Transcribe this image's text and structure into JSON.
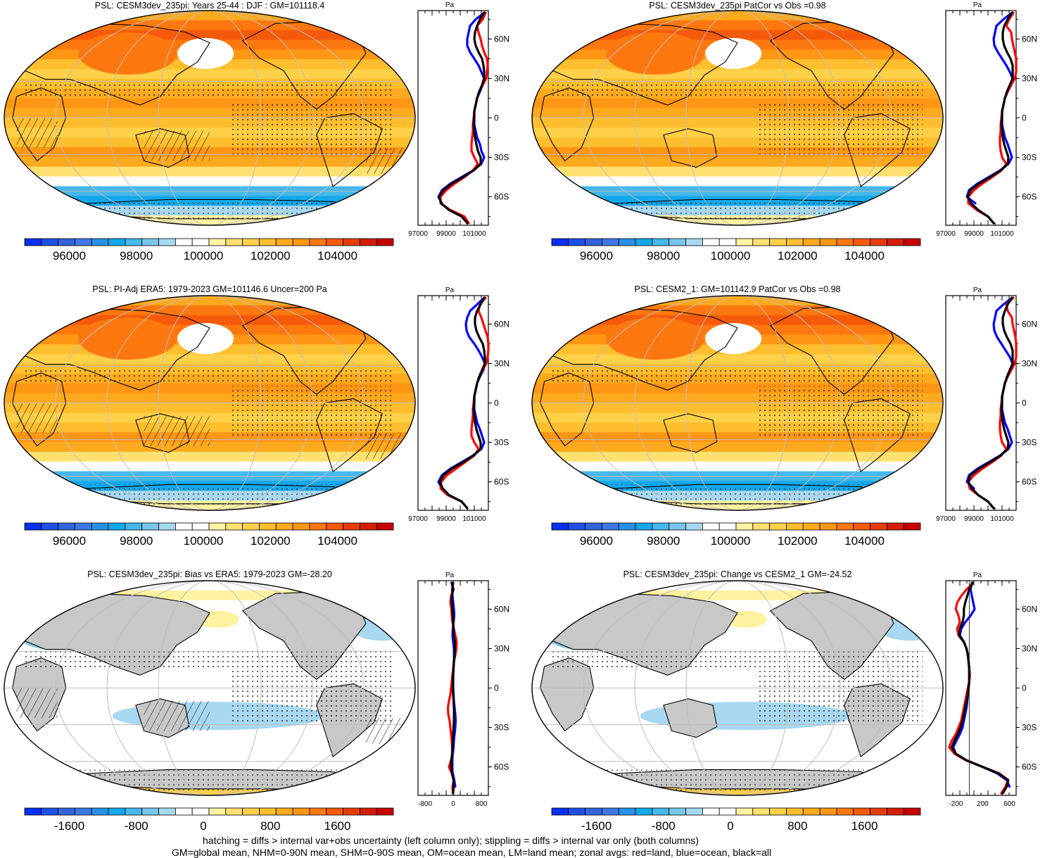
{
  "colors": {
    "palette_abs": [
      "#0a2ff0",
      "#1e4fe6",
      "#3264dc",
      "#3c78e6",
      "#2890e8",
      "#14a8ea",
      "#46b8ec",
      "#78c6ec",
      "#a8d8f0",
      "#ffffff",
      "#ffffff",
      "#fff2a0",
      "#ffe070",
      "#ffd048",
      "#ffbe2e",
      "#ffaa1e",
      "#ff9614",
      "#ff780f",
      "#f55a0a",
      "#e63c0a",
      "#d21e0a",
      "#c80000"
    ],
    "palette_diff": [
      "#0a2ff0",
      "#1e4fe6",
      "#3264dc",
      "#3c78e6",
      "#2890e8",
      "#14a8ea",
      "#46b8ec",
      "#78c6ec",
      "#a8d8f0",
      "#ffffff",
      "#ffffff",
      "#fff2a0",
      "#ffe070",
      "#ffd048",
      "#ffbe2e",
      "#ffaa1e",
      "#ff9614",
      "#ff780f",
      "#f55a0a",
      "#e63c0a",
      "#d21e0a",
      "#c80000"
    ],
    "land_mask": "#c8c8c8",
    "line_land": "#ff0000",
    "line_ocean": "#0000ff",
    "line_all": "#000000"
  },
  "panels": [
    {
      "title": "PSL: CESM3dev_235pi: Years 25-44 : DJF : GM=101118.4",
      "kind": "absolute",
      "colorbar_labels": [
        "96000",
        "98000",
        "100000",
        "102000",
        "104000"
      ],
      "zonal": {
        "unit": "Pa",
        "lat_labels": [
          "60N",
          "30N",
          "0",
          "30S",
          "60S"
        ],
        "x_labels": [
          "97000",
          "99000",
          "101000"
        ],
        "xlim": [
          97000,
          102000
        ],
        "lat": [
          80,
          75,
          70,
          65,
          60,
          55,
          50,
          45,
          40,
          35,
          30,
          25,
          20,
          15,
          10,
          5,
          0,
          -5,
          -10,
          -15,
          -20,
          -25,
          -30,
          -35,
          -40,
          -45,
          -50,
          -55,
          -60,
          -65,
          -70,
          -75,
          -80
        ],
        "land": [
          101800,
          101600,
          101200,
          101300,
          101450,
          101550,
          101700,
          101900,
          101950,
          101900,
          101850,
          101600,
          101350,
          101200,
          101100,
          101000,
          100950,
          100900,
          100900,
          100850,
          100800,
          100800,
          101000,
          101250,
          100900,
          100300,
          99600,
          99000,
          98600,
          98600,
          99300,
          100300,
          100600
        ],
        "ocean": [
          101700,
          101100,
          100700,
          100600,
          100500,
          100500,
          100700,
          101000,
          101300,
          101500,
          101700,
          101600,
          101400,
          101200,
          101100,
          101000,
          101000,
          101000,
          101100,
          101200,
          101400,
          101500,
          101700,
          101500,
          100900,
          100100,
          99300,
          98700,
          98450,
          98700,
          null,
          null,
          null
        ],
        "all": [
          101700,
          101400,
          101200,
          101050,
          101000,
          101100,
          101300,
          101550,
          101650,
          101700,
          101700,
          101550,
          101350,
          101200,
          101100,
          101000,
          101000,
          100950,
          101000,
          101050,
          101150,
          101250,
          101450,
          101450,
          100950,
          100200,
          99400,
          98800,
          98500,
          98650,
          99200,
          100100,
          100500
        ]
      }
    },
    {
      "title": "PSL: CESM3dev_235pi PatCor vs Obs =0.98",
      "kind": "absolute",
      "colorbar_labels": [
        "96000",
        "98000",
        "100000",
        "102000",
        "104000"
      ],
      "zonal": {
        "unit": "Pa",
        "lat_labels": [
          "60N",
          "30N",
          "0",
          "30S",
          "60S"
        ],
        "x_labels": [
          "97000",
          "99000",
          "101000"
        ],
        "xlim": [
          97000,
          102000
        ],
        "lat": [
          80,
          75,
          70,
          65,
          60,
          55,
          50,
          45,
          40,
          35,
          30,
          25,
          20,
          15,
          10,
          5,
          0,
          -5,
          -10,
          -15,
          -20,
          -25,
          -30,
          -35,
          -40,
          -45,
          -50,
          -55,
          -60,
          -65,
          -70,
          -75,
          -80
        ],
        "land": [
          101800,
          101500,
          101300,
          101650,
          101700,
          101800,
          101900,
          102000,
          102100,
          102050,
          101900,
          101650,
          101400,
          101200,
          101100,
          101000,
          100950,
          100900,
          100900,
          100850,
          100850,
          100900,
          101000,
          101300,
          100950,
          100300,
          99600,
          99000,
          98600,
          98600,
          99200,
          100000,
          100400
        ],
        "ocean": [
          101700,
          101100,
          100600,
          100500,
          100400,
          100450,
          100700,
          101000,
          101300,
          101550,
          101750,
          101650,
          101400,
          101200,
          101100,
          101000,
          101000,
          101000,
          101100,
          101200,
          101400,
          101550,
          101700,
          101450,
          100850,
          100050,
          99250,
          98650,
          98500,
          99100,
          null,
          null,
          null
        ],
        "all": [
          101700,
          101400,
          101150,
          101050,
          101050,
          101150,
          101350,
          101600,
          101750,
          101750,
          101750,
          101550,
          101350,
          101200,
          101100,
          101000,
          101000,
          100950,
          101000,
          101050,
          101150,
          101300,
          101450,
          101400,
          100900,
          100150,
          99350,
          98750,
          98550,
          98800,
          99300,
          100000,
          100400
        ]
      }
    },
    {
      "title": "PSL: PI-Adj ERA5: 1979-2023 GM=101146.6 Uncer=200 Pa",
      "kind": "absolute",
      "colorbar_labels": [
        "96000",
        "98000",
        "100000",
        "102000",
        "104000"
      ],
      "zonal": {
        "unit": "Pa",
        "lat_labels": [
          "60N",
          "30N",
          "0",
          "30S",
          "60S"
        ],
        "x_labels": [
          "97000",
          "99000",
          "101000"
        ],
        "xlim": [
          97000,
          102000
        ],
        "lat": [
          80,
          75,
          70,
          65,
          60,
          55,
          50,
          45,
          40,
          35,
          30,
          25,
          20,
          15,
          10,
          5,
          0,
          -5,
          -10,
          -15,
          -20,
          -25,
          -30,
          -35,
          -40,
          -45,
          -50,
          -55,
          -60,
          -65,
          -70,
          -75,
          -80
        ],
        "land": [
          101800,
          101400,
          101300,
          101500,
          101650,
          101800,
          101950,
          102000,
          102000,
          101950,
          101850,
          101600,
          101350,
          101200,
          101100,
          101000,
          100950,
          100900,
          100900,
          100850,
          100800,
          100800,
          101000,
          101300,
          101000,
          100350,
          99700,
          99050,
          98650,
          98600,
          99100,
          100100,
          100500
        ],
        "ocean": [
          101700,
          101200,
          100700,
          100500,
          100400,
          100450,
          100650,
          101000,
          101300,
          101550,
          101750,
          101650,
          101400,
          101200,
          101100,
          101000,
          101000,
          101000,
          101100,
          101200,
          101400,
          101550,
          101700,
          101500,
          100900,
          100100,
          99300,
          98700,
          98450,
          98700,
          null,
          null,
          null
        ],
        "all": [
          101700,
          101450,
          101200,
          101050,
          101050,
          101150,
          101350,
          101600,
          101700,
          101750,
          101750,
          101550,
          101350,
          101200,
          101100,
          101000,
          101000,
          100950,
          101000,
          101050,
          101150,
          101300,
          101450,
          101450,
          100950,
          100200,
          99400,
          98800,
          98550,
          98750,
          99200,
          100100,
          100500
        ]
      }
    },
    {
      "title": "PSL: CESM2_1: GM=101142.9 PatCor vs Obs =0.98",
      "kind": "absolute",
      "colorbar_labels": [
        "96000",
        "98000",
        "100000",
        "102000",
        "104000"
      ],
      "zonal": {
        "unit": "Pa",
        "lat_labels": [
          "60N",
          "30N",
          "0",
          "30S",
          "60S"
        ],
        "x_labels": [
          "97000",
          "99000",
          "101000"
        ],
        "xlim": [
          97000,
          102000
        ],
        "lat": [
          80,
          75,
          70,
          65,
          60,
          55,
          50,
          45,
          40,
          35,
          30,
          25,
          20,
          15,
          10,
          5,
          0,
          -5,
          -10,
          -15,
          -20,
          -25,
          -30,
          -35,
          -40,
          -45,
          -50,
          -55,
          -60,
          -65,
          -70,
          -75,
          -80
        ],
        "land": [
          101800,
          101300,
          101400,
          101700,
          101750,
          101850,
          101950,
          102050,
          102100,
          102050,
          101900,
          101650,
          101400,
          101200,
          101100,
          101000,
          100950,
          100900,
          100900,
          100850,
          100850,
          100900,
          101000,
          101300,
          100950,
          100300,
          99600,
          99000,
          98600,
          98700,
          99300,
          100000,
          100400
        ],
        "ocean": [
          101700,
          101100,
          100600,
          100500,
          100400,
          100450,
          100650,
          100950,
          101250,
          101550,
          101750,
          101650,
          101400,
          101200,
          101100,
          101000,
          101000,
          101000,
          101100,
          101200,
          101400,
          101550,
          101700,
          101450,
          100850,
          100050,
          99250,
          98650,
          98500,
          99000,
          null,
          null,
          null
        ],
        "all": [
          101700,
          101400,
          101200,
          101050,
          101050,
          101150,
          101350,
          101600,
          101750,
          101750,
          101750,
          101550,
          101350,
          101200,
          101100,
          101000,
          101000,
          100950,
          101000,
          101050,
          101150,
          101300,
          101450,
          101400,
          100900,
          100150,
          99350,
          98750,
          98600,
          98850,
          99300,
          100000,
          100400
        ]
      }
    },
    {
      "title": "PSL: CESM3dev_235pi: Bias vs ERA5: 1979-2023 GM=-28.20",
      "kind": "difference",
      "colorbar_labels": [
        "-1600",
        "-800",
        "0",
        "800",
        "1600"
      ],
      "zonal": {
        "unit": "Pa",
        "lat_labels": [
          "60N",
          "30N",
          "0",
          "30S",
          "60S"
        ],
        "x_labels": [
          "-800",
          "0",
          "800"
        ],
        "xlim": [
          -1000,
          1000
        ],
        "lat": [
          80,
          75,
          70,
          65,
          60,
          55,
          50,
          45,
          40,
          35,
          30,
          25,
          20,
          15,
          10,
          5,
          0,
          -5,
          -10,
          -15,
          -20,
          -25,
          -30,
          -35,
          -40,
          -45,
          -50,
          -55,
          -60,
          -65,
          -70,
          -75,
          -80
        ],
        "land": [
          -50,
          10,
          -60,
          -80,
          -50,
          -40,
          -20,
          20,
          60,
          100,
          90,
          60,
          20,
          0,
          -20,
          -40,
          -60,
          -80,
          -120,
          -150,
          -140,
          -100,
          -80,
          -60,
          -40,
          -30,
          -20,
          -60,
          -120,
          -40,
          20,
          -20,
          -10
        ],
        "ocean": [
          0,
          -30,
          -20,
          0,
          20,
          30,
          10,
          -10,
          -20,
          0,
          20,
          30,
          20,
          10,
          0,
          0,
          0,
          10,
          20,
          40,
          60,
          70,
          60,
          40,
          20,
          10,
          -10,
          -30,
          -40,
          -10,
          30,
          60,
          null
        ],
        "all": [
          -30,
          0,
          -40,
          -40,
          -20,
          -10,
          0,
          10,
          20,
          50,
          50,
          40,
          20,
          10,
          0,
          -10,
          -10,
          0,
          10,
          20,
          30,
          20,
          10,
          0,
          -10,
          -20,
          -30,
          -50,
          -60,
          -30,
          10,
          10,
          0
        ]
      }
    },
    {
      "title": "PSL: CESM3dev_235pi: Change vs CESM2_1 GM=-24.52",
      "kind": "difference",
      "colorbar_labels": [
        "-1600",
        "-800",
        "0",
        "800",
        "1600"
      ],
      "zonal": {
        "unit": "Pa",
        "lat_labels": [
          "60N",
          "30N",
          "0",
          "30S",
          "60S"
        ],
        "x_labels": [
          "-200",
          "200",
          "600"
        ],
        "xlim": [
          -350,
          700
        ],
        "lat": [
          80,
          75,
          70,
          65,
          60,
          55,
          50,
          45,
          40,
          35,
          30,
          25,
          20,
          15,
          10,
          5,
          0,
          -5,
          -10,
          -15,
          -20,
          -25,
          -30,
          -35,
          -40,
          -45,
          -50,
          -55,
          -60,
          -65,
          -70,
          -75,
          -80
        ],
        "land": [
          60,
          -40,
          -120,
          -180,
          -200,
          -160,
          -140,
          -180,
          -160,
          -80,
          -40,
          -20,
          -10,
          0,
          10,
          0,
          -20,
          -40,
          -60,
          -80,
          -100,
          -120,
          -160,
          -200,
          -260,
          -300,
          -220,
          -50,
          200,
          450,
          580,
          540,
          480
        ],
        "ocean": [
          40,
          20,
          40,
          60,
          80,
          20,
          -60,
          -120,
          -140,
          -80,
          -40,
          -20,
          -10,
          0,
          0,
          0,
          -10,
          -20,
          -30,
          -40,
          -60,
          -80,
          -100,
          -140,
          -190,
          -240,
          -200,
          -40,
          200,
          420,
          560,
          600,
          null
        ],
        "all": [
          50,
          0,
          -30,
          -60,
          -80,
          -80,
          -100,
          -140,
          -150,
          -80,
          -40,
          -20,
          -10,
          0,
          0,
          0,
          -10,
          -20,
          -40,
          -60,
          -80,
          -100,
          -130,
          -170,
          -220,
          -260,
          -200,
          -40,
          200,
          440,
          580,
          560,
          500
        ]
      }
    }
  ],
  "footer": {
    "line1": "hatching = diffs > internal var+obs uncertainty (left column only); stippling = diffs > internal var only (both columns)",
    "line2": "GM=global mean, NHM=0-90N mean, SHM=0-90S mean, OM=ocean mean, LM=land mean; zonal avgs: red=land, blue=ocean, black=all"
  }
}
